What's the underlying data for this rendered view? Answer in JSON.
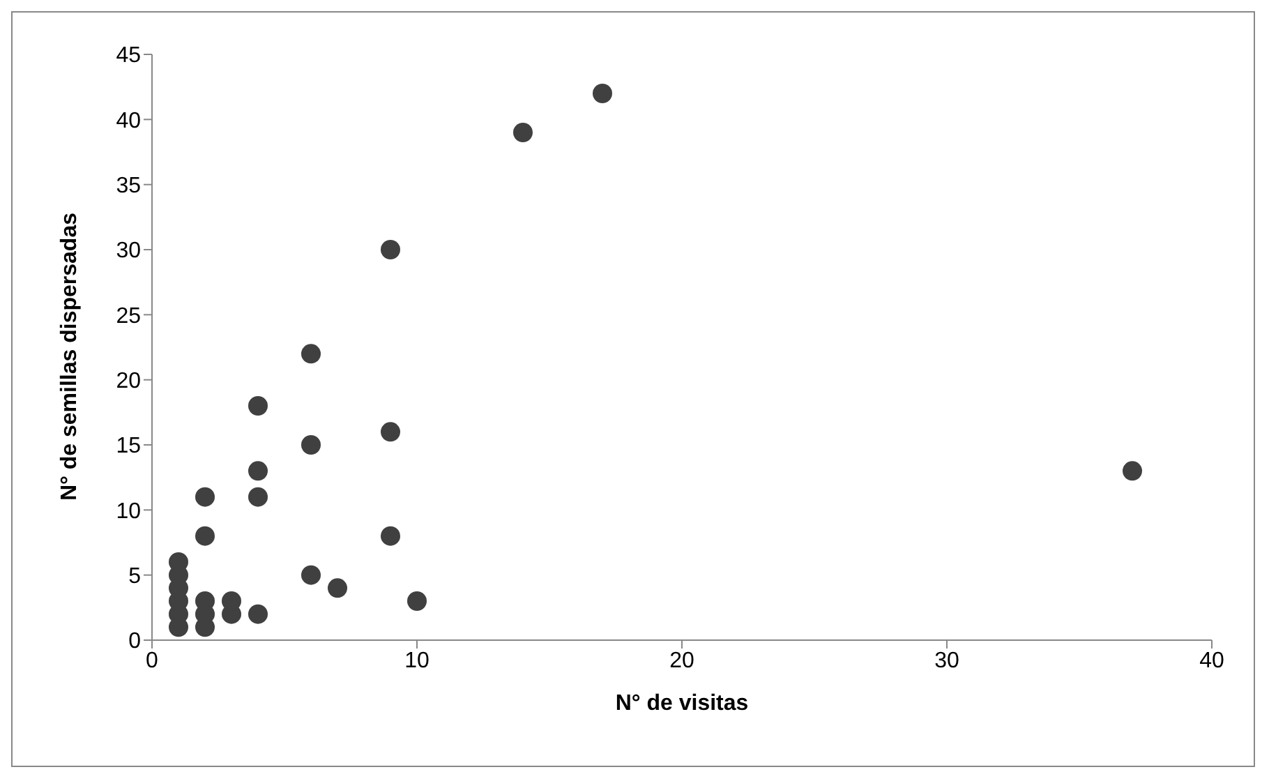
{
  "chart_data": {
    "type": "scatter",
    "xlabel": "N° de visitas",
    "ylabel": "N° de semillas dispersadas",
    "x": [
      1,
      1,
      1,
      1,
      1,
      1,
      2,
      2,
      2,
      2,
      2,
      3,
      3,
      4,
      4,
      4,
      4,
      6,
      6,
      6,
      7,
      9,
      9,
      9,
      10,
      14,
      17,
      37
    ],
    "values": [
      1,
      2,
      3,
      4,
      5,
      6,
      1,
      2,
      3,
      8,
      11,
      2,
      3,
      2,
      11,
      13,
      18,
      5,
      15,
      22,
      4,
      8,
      16,
      30,
      3,
      39,
      42,
      13
    ],
    "color": "#404040",
    "marker": "circle",
    "grid": false,
    "legend": false,
    "xlim": [
      0,
      40
    ],
    "xticks": [
      0,
      10,
      20,
      30,
      40
    ],
    "ylim": [
      0,
      45
    ],
    "yticks": [
      0,
      5,
      10,
      15,
      20,
      25,
      30,
      35,
      40,
      45
    ]
  }
}
